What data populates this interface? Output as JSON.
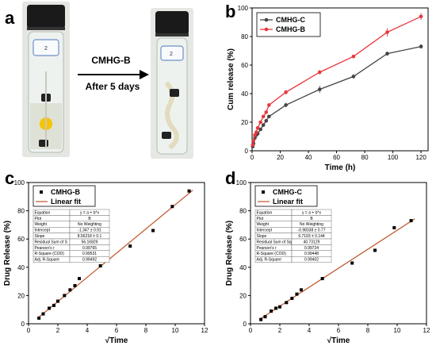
{
  "panel_a": {
    "letter": "a",
    "arrow_title": "CMHG-B",
    "arrow_subtitle": "After 5 days",
    "vial_label_left": "2",
    "vial_label_right": "2"
  },
  "chart_data": [
    {
      "panel": "b",
      "type": "line",
      "xlabel": "Time (h)",
      "ylabel": "Cum release (%)",
      "xlim": [
        0,
        125
      ],
      "ylim": [
        0,
        100
      ],
      "xticks": [
        "0",
        "20",
        "40",
        "60",
        "80",
        "100",
        "120"
      ],
      "yticks": [
        "0",
        "20",
        "40",
        "60",
        "80",
        "100"
      ],
      "legend_position": "top-left",
      "series": [
        {
          "name": "CMHG-C",
          "color": "#444444",
          "x": [
            0.5,
            1,
            2,
            3,
            4,
            6,
            8,
            10,
            12,
            24,
            48,
            72,
            96,
            120
          ],
          "y": [
            3,
            5,
            9,
            11,
            12,
            15,
            18,
            21,
            24,
            32,
            43,
            52,
            68,
            73
          ],
          "err": [
            0.5,
            0.5,
            0.8,
            0.8,
            1,
            1,
            1,
            1.2,
            1.2,
            1.5,
            2.5,
            1.5,
            1.5,
            1.5
          ]
        },
        {
          "name": "CMHG-B",
          "color": "#e8373d",
          "x": [
            0.5,
            1,
            2,
            3,
            4,
            6,
            8,
            10,
            12,
            24,
            48,
            72,
            96,
            120
          ],
          "y": [
            4,
            7,
            11,
            13,
            16,
            20,
            24,
            27,
            32,
            41,
            55,
            66,
            83,
            94
          ],
          "err": [
            0.5,
            0.5,
            0.8,
            0.8,
            1,
            1,
            1,
            1.2,
            1.2,
            1.5,
            1.5,
            1,
            3,
            2.5
          ]
        }
      ]
    },
    {
      "panel": "c",
      "type": "scatter",
      "xlabel": "√Time",
      "ylabel": "Drug Release (%)",
      "xlim": [
        0,
        12
      ],
      "ylim": [
        0,
        100
      ],
      "xticks": [
        "0",
        "2",
        "4",
        "6",
        "8",
        "10",
        "12"
      ],
      "yticks": [
        "0",
        "20",
        "40",
        "60",
        "80",
        "100"
      ],
      "legend_position": "top-left",
      "legend": [
        "CMHG-B",
        "Linear fit"
      ],
      "series": [
        {
          "name": "CMHG-B",
          "x": [
            0.71,
            1,
            1.41,
            1.73,
            2,
            2.45,
            2.83,
            3.16,
            3.46,
            4.9,
            6.93,
            8.49,
            9.8,
            10.95
          ],
          "y": [
            4,
            7,
            11,
            13,
            16,
            20,
            24,
            27,
            32,
            41,
            55,
            66,
            83,
            94
          ]
        }
      ],
      "fit": {
        "name": "Linear fit",
        "intercept": -1.347,
        "slope": 8.56218,
        "color": "#c0552a"
      },
      "table": [
        [
          "Equation",
          "y = a + b*x"
        ],
        [
          "Plot",
          "B"
        ],
        [
          "Weight",
          "No Weighting"
        ],
        [
          "Intercept",
          "-1.347 ± 0.91"
        ],
        [
          "Slope",
          "8.56218 ± 0.1"
        ],
        [
          "Residual Sum of S",
          "56.16829"
        ],
        [
          "Pearson's r",
          "0.99765"
        ],
        [
          "R-Square (COD)",
          "0.99531"
        ],
        [
          "Adj. R-Square",
          "0.99492"
        ]
      ]
    },
    {
      "panel": "d",
      "type": "scatter",
      "xlabel": "√Time",
      "ylabel": "Drug Release (%)",
      "xlim": [
        0,
        12
      ],
      "ylim": [
        0,
        100
      ],
      "xticks": [
        "0",
        "2",
        "4",
        "6",
        "8",
        "10",
        "12"
      ],
      "yticks": [
        "0",
        "20",
        "40",
        "60",
        "80",
        "100"
      ],
      "legend_position": "top-left",
      "legend": [
        "CMHG-C",
        "Linear fit"
      ],
      "series": [
        {
          "name": "CMHG-C",
          "x": [
            0.71,
            1,
            1.41,
            1.73,
            2,
            2.45,
            2.83,
            3.16,
            3.46,
            4.9,
            6.93,
            8.49,
            9.8,
            10.95
          ],
          "y": [
            3,
            5,
            9,
            11,
            12,
            15,
            18,
            21,
            24,
            32,
            43,
            52,
            68,
            73
          ]
        }
      ],
      "fit": {
        "name": "Linear fit",
        "intercept": -0.98338,
        "slope": 6.7193,
        "color": "#c0552a"
      },
      "table": [
        [
          "Equation",
          "y = a + b*x"
        ],
        [
          "Plot",
          "B"
        ],
        [
          "Weight",
          "No Weighting"
        ],
        [
          "Intercept",
          "-0.98338 ± 0.77"
        ],
        [
          "Slope",
          "6.7193 ± 0.144"
        ],
        [
          "Residual Sum of Sq",
          "40.73129"
        ],
        [
          "Pearson's r",
          "0.99724"
        ],
        [
          "R-Square (COD)",
          "0.99448"
        ],
        [
          "Adj. R-Square",
          "0.99402"
        ]
      ]
    }
  ]
}
